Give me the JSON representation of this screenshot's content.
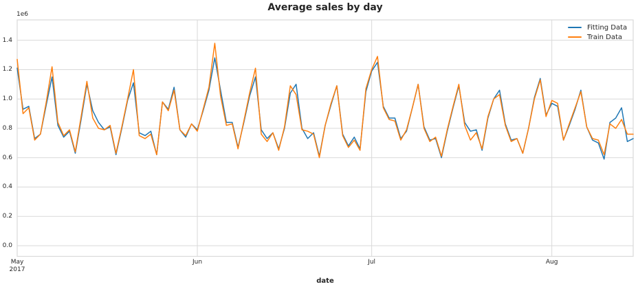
{
  "title": "Average sales by day",
  "axes": {
    "x_label": "date",
    "y_offset_label": "1e6",
    "y_ticks": [
      "0.0",
      "0.2",
      "0.4",
      "0.6",
      "0.8",
      "1.0",
      "1.2",
      "1.4"
    ],
    "x_ticks": [
      {
        "label": "May",
        "sublabel": "2017",
        "day": 0
      },
      {
        "label": "Jun",
        "sublabel": "",
        "day": 31
      },
      {
        "label": "Jul",
        "sublabel": "",
        "day": 61
      },
      {
        "label": "Aug",
        "sublabel": "",
        "day": 92
      }
    ]
  },
  "colors": {
    "fitting_line": "#1f77b4",
    "train_line": "#ff7f0e",
    "grid": "#d9d9d9",
    "text": "#262626"
  },
  "chart_data": {
    "type": "line",
    "title": "Average sales by day",
    "xlabel": "date",
    "ylabel": "",
    "y_unit_multiplier": "1e6",
    "x_start_date": "2017-05-01",
    "x_end_date": "2017-08-15",
    "x_frequency": "daily",
    "n_points": 107,
    "ylim": [
      -0.07,
      1.54
    ],
    "y_tick_values": [
      0.0,
      0.2,
      0.4,
      0.6,
      0.8,
      1.0,
      1.2,
      1.4
    ],
    "grid": true,
    "legend_position": "upper right",
    "legend_frame": false,
    "series": [
      {
        "name": "Fitting Data",
        "color": "#1f77b4",
        "values": [
          1.21,
          0.93,
          0.95,
          0.73,
          0.76,
          0.96,
          1.15,
          0.82,
          0.74,
          0.78,
          0.63,
          0.86,
          1.1,
          0.92,
          0.84,
          0.79,
          0.81,
          0.62,
          0.8,
          0.99,
          1.11,
          0.77,
          0.75,
          0.78,
          0.62,
          0.98,
          0.93,
          1.08,
          0.79,
          0.74,
          0.83,
          0.79,
          0.92,
          1.06,
          1.28,
          1.06,
          0.84,
          0.84,
          0.67,
          0.84,
          1.02,
          1.15,
          0.79,
          0.73,
          0.77,
          0.66,
          0.8,
          1.04,
          1.1,
          0.8,
          0.73,
          0.77,
          0.61,
          0.82,
          0.96,
          1.09,
          0.76,
          0.68,
          0.74,
          0.66,
          1.05,
          1.19,
          1.25,
          0.95,
          0.87,
          0.87,
          0.73,
          0.78,
          0.94,
          1.1,
          0.81,
          0.72,
          0.73,
          0.6,
          0.78,
          0.94,
          1.09,
          0.84,
          0.78,
          0.79,
          0.65,
          0.87,
          1.0,
          1.06,
          0.83,
          0.72,
          0.73,
          0.63,
          0.8,
          1.01,
          1.14,
          0.89,
          0.97,
          0.95,
          0.72,
          0.82,
          0.93,
          1.06,
          0.81,
          0.72,
          0.7,
          0.59,
          0.84,
          0.87,
          0.94,
          0.71,
          0.73
        ]
      },
      {
        "name": "Train Data",
        "color": "#ff7f0e",
        "values": [
          1.27,
          0.9,
          0.94,
          0.72,
          0.76,
          0.98,
          1.22,
          0.84,
          0.75,
          0.79,
          0.64,
          0.88,
          1.12,
          0.87,
          0.8,
          0.79,
          0.82,
          0.63,
          0.81,
          1.0,
          1.2,
          0.75,
          0.73,
          0.76,
          0.62,
          0.98,
          0.92,
          1.06,
          0.79,
          0.75,
          0.83,
          0.78,
          0.93,
          1.08,
          1.38,
          1.02,
          0.82,
          0.83,
          0.66,
          0.85,
          1.04,
          1.21,
          0.76,
          0.71,
          0.77,
          0.65,
          0.81,
          1.09,
          1.03,
          0.79,
          0.78,
          0.76,
          0.6,
          0.82,
          0.97,
          1.09,
          0.75,
          0.67,
          0.72,
          0.65,
          1.07,
          1.2,
          1.29,
          0.94,
          0.86,
          0.85,
          0.72,
          0.79,
          0.94,
          1.1,
          0.8,
          0.71,
          0.74,
          0.61,
          0.79,
          0.95,
          1.1,
          0.82,
          0.72,
          0.77,
          0.66,
          0.88,
          1.0,
          1.03,
          0.82,
          0.71,
          0.73,
          0.63,
          0.8,
          1.0,
          1.13,
          0.88,
          0.99,
          0.97,
          0.72,
          0.83,
          0.94,
          1.05,
          0.81,
          0.73,
          0.72,
          0.62,
          0.83,
          0.8,
          0.86,
          0.76,
          0.76
        ]
      }
    ]
  }
}
